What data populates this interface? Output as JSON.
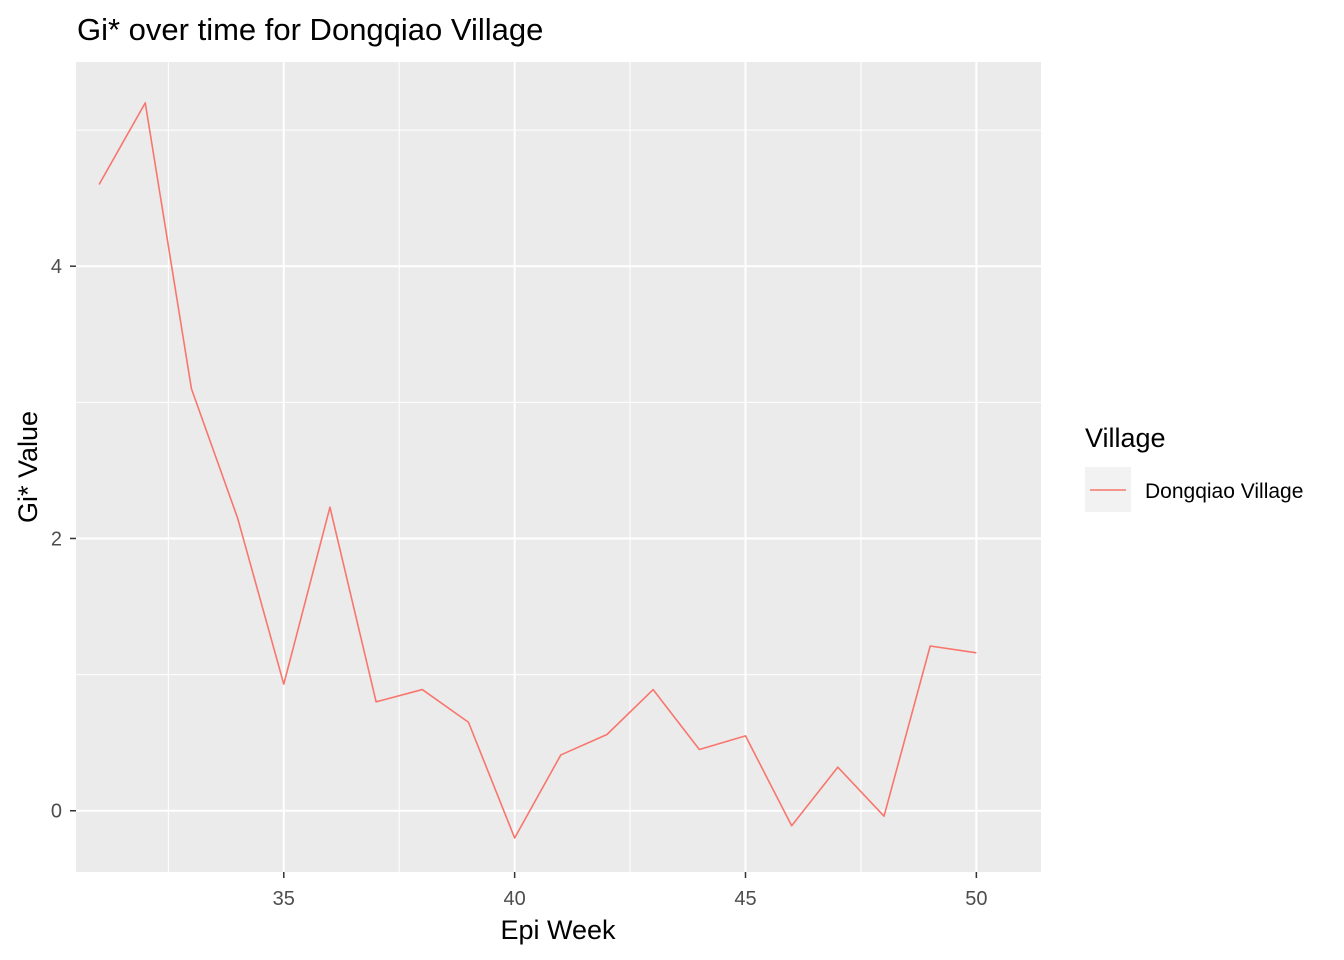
{
  "chart_data": {
    "type": "line",
    "title": "Gi* over time for Dongqiao Village",
    "xlabel": "Epi Week",
    "ylabel": "Gi* Value",
    "xlim": [
      30.5,
      51.4
    ],
    "ylim": [
      -0.45,
      5.5
    ],
    "x_ticks": [
      35,
      40,
      45,
      50
    ],
    "x_tick_labels": [
      "35",
      "40",
      "45",
      "50"
    ],
    "x_minor_ticks": [
      32.5,
      37.5,
      42.5,
      47.5
    ],
    "y_ticks": [
      0,
      2,
      4
    ],
    "y_tick_labels": [
      "0",
      "2",
      "4"
    ],
    "y_minor_ticks": [
      1,
      3,
      5
    ],
    "grid": true,
    "legend": {
      "title": "Village",
      "position": "right"
    },
    "series": [
      {
        "name": "Dongqiao Village",
        "color": "#F8766D",
        "x": [
          31,
          32,
          33,
          34,
          35,
          36,
          37,
          38,
          39,
          40,
          41,
          42,
          43,
          44,
          45,
          46,
          47,
          48,
          49,
          50
        ],
        "values": [
          4.6,
          5.2,
          3.1,
          2.15,
          0.93,
          2.23,
          0.8,
          0.89,
          0.65,
          -0.2,
          0.41,
          0.56,
          0.89,
          0.45,
          0.55,
          -0.11,
          0.32,
          -0.04,
          1.21,
          1.16
        ]
      }
    ]
  }
}
